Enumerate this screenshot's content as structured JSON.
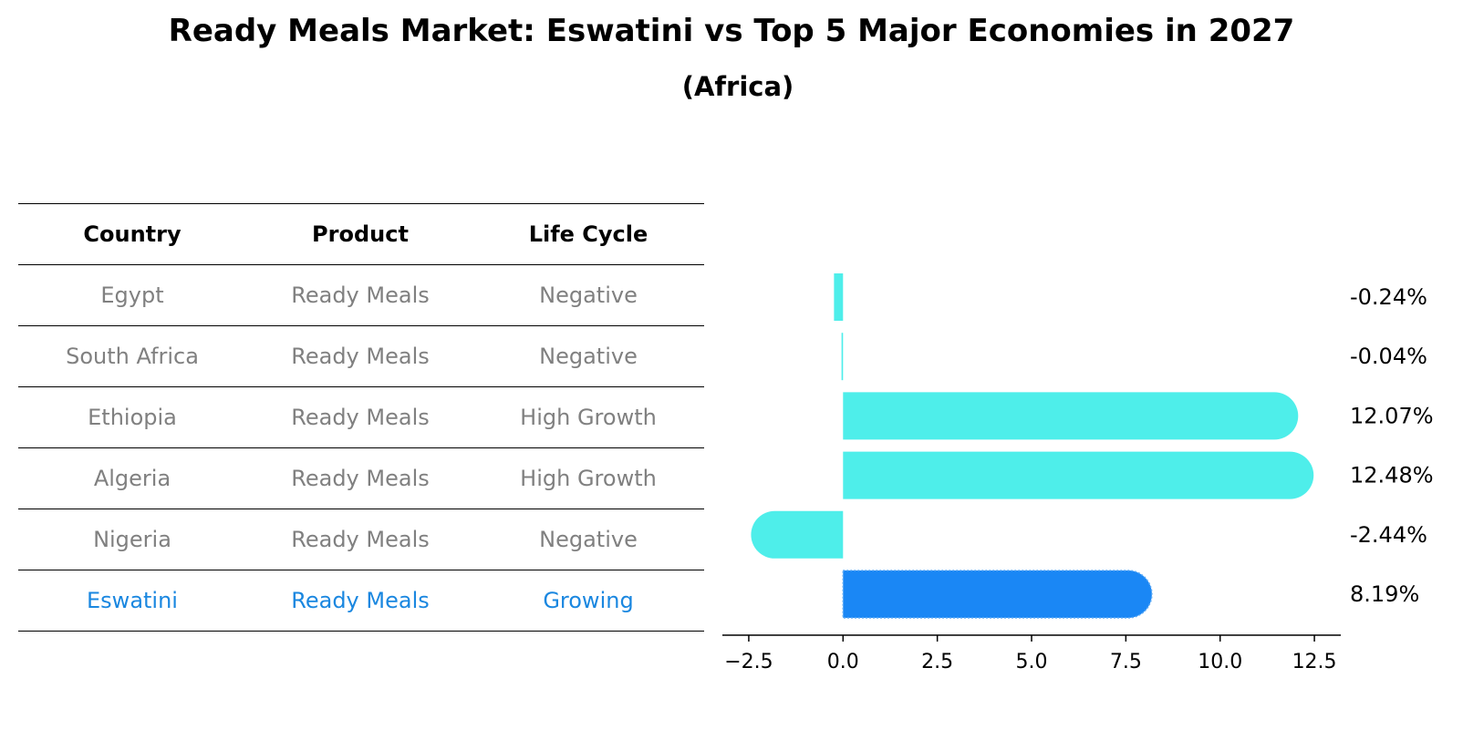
{
  "chart_data": {
    "type": "bar",
    "orientation": "horizontal",
    "title": "Ready Meals Market: Eswatini vs Top 5 Major Economies in 2027",
    "subtitle": "(Africa)",
    "categories": [
      "Egypt",
      "South Africa",
      "Ethiopia",
      "Algeria",
      "Nigeria",
      "Eswatini"
    ],
    "values": [
      -0.24,
      -0.04,
      12.07,
      12.48,
      -2.44,
      8.19
    ],
    "value_labels": [
      "-0.24%",
      "-0.04%",
      "12.07%",
      "12.48%",
      "-2.44%",
      "8.19%"
    ],
    "highlight": "Eswatini",
    "xlim": [
      -3.2,
      13.2
    ],
    "xticks": [
      -2.5,
      0.0,
      2.5,
      5.0,
      7.5,
      10.0,
      12.5
    ],
    "xtick_labels": [
      "−2.5",
      "0.0",
      "2.5",
      "5.0",
      "7.5",
      "10.0",
      "12.5"
    ],
    "xlabel": "",
    "ylabel": "",
    "grid": false
  },
  "table": {
    "headers": [
      "Country",
      "Product",
      "Life Cycle"
    ],
    "rows": [
      [
        "Egypt",
        "Ready Meals",
        "Negative"
      ],
      [
        "South Africa",
        "Ready Meals",
        "Negative"
      ],
      [
        "Ethiopia",
        "Ready Meals",
        "High Growth"
      ],
      [
        "Algeria",
        "Ready Meals",
        "High Growth"
      ],
      [
        "Nigeria",
        "Ready Meals",
        "Negative"
      ],
      [
        "Eswatini",
        "Ready Meals",
        "Growing"
      ]
    ]
  },
  "colors": {
    "bar": "#4eeeea",
    "highlight_bar": "#1a87f5",
    "table_text": "#808080",
    "table_highlight_text": "#1a87e0"
  }
}
